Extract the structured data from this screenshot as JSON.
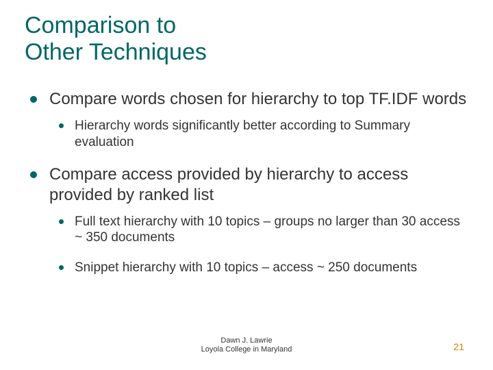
{
  "slide": {
    "title": "Comparison to\nOther Techniques",
    "title_color": "#006666",
    "title_fontsize": 34,
    "bullet_color": "#006666",
    "body_color": "#333333",
    "l1_fontsize": 24,
    "l2_fontsize": 19,
    "background": "#ffffff",
    "items": [
      {
        "text": "Compare words chosen for hierarchy to top TF.IDF words",
        "sub": [
          {
            "text": "Hierarchy words significantly better according to Summary evaluation"
          }
        ]
      },
      {
        "text": "Compare access provided by hierarchy to access provided by ranked list",
        "sub": [
          {
            "text": "Full text hierarchy with 10 topics – groups no larger than 30 access ~ 350 documents"
          },
          {
            "text": "Snippet hierarchy with 10 topics – access ~ 250 documents"
          }
        ]
      }
    ],
    "footer": {
      "line1": "Dawn J. Lawrie",
      "line2": "Loyola College in Maryland",
      "page_number": "21",
      "page_number_color": "#cc8400",
      "footer_fontsize": 11
    }
  }
}
